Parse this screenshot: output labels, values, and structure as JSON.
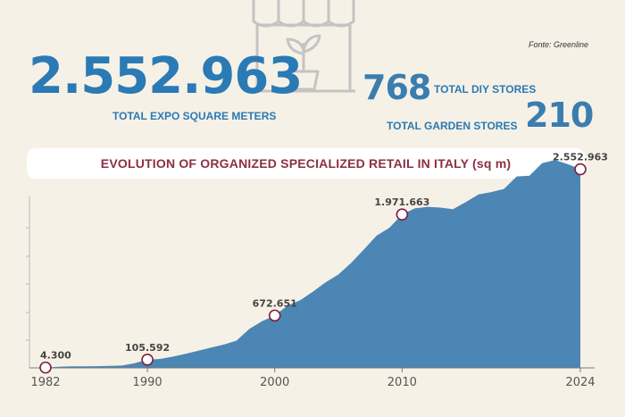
{
  "source": "Fonte: Greenline",
  "headline": {
    "total_value": "2.552.963",
    "total_label": "TOTAL EXPO SQUARE METERS",
    "diy_value": "768",
    "diy_label": "TOTAL DIY STORES",
    "garden_value": "210",
    "garden_label": "TOTAL GARDEN STORES"
  },
  "icon": "storefront-plant-icon",
  "colors": {
    "accent": "#2a7ab5",
    "area": "#4b86b4",
    "title": "#8c2f45",
    "marker": "#7a2040"
  },
  "chart_data": {
    "type": "area",
    "title": "EVOLUTION OF ORGANIZED SPECIALIZED RETAIL IN ITALY (sq m)",
    "xlabel": "",
    "ylabel": "",
    "xlim": [
      1982,
      2024
    ],
    "ylim": [
      0,
      2800000
    ],
    "x_ticks": [
      "1982",
      "1990",
      "2000",
      "2010",
      "2024"
    ],
    "grid": false,
    "x": [
      1982,
      1983,
      1984,
      1985,
      1986,
      1987,
      1988,
      1989,
      1990,
      1991,
      1992,
      1993,
      1994,
      1995,
      1996,
      1997,
      1998,
      1999,
      2000,
      2001,
      2002,
      2003,
      2004,
      2005,
      2006,
      2007,
      2008,
      2009,
      2010,
      2011,
      2012,
      2013,
      2014,
      2015,
      2016,
      2017,
      2018,
      2019,
      2020,
      2021,
      2022,
      2023,
      2024
    ],
    "values": [
      4300,
      15000,
      20000,
      20000,
      22000,
      25000,
      30000,
      60000,
      105592,
      115000,
      145000,
      180000,
      220000,
      260000,
      300000,
      350000,
      500000,
      600000,
      672651,
      800000,
      870000,
      980000,
      1100000,
      1200000,
      1350000,
      1520000,
      1700000,
      1800000,
      1971663,
      2050000,
      2070000,
      2060000,
      2040000,
      2130000,
      2230000,
      2260000,
      2300000,
      2460000,
      2470000,
      2630000,
      2670000,
      2620000,
      2552963
    ],
    "annotations": [
      {
        "x": 1982,
        "value": 4300,
        "label": "4.300"
      },
      {
        "x": 1990,
        "value": 105592,
        "label": "105.592"
      },
      {
        "x": 2000,
        "value": 672651,
        "label": "672.651"
      },
      {
        "x": 2010,
        "value": 1971663,
        "label": "1.971.663"
      },
      {
        "x": 2024,
        "value": 2552963,
        "label": "2.552.963"
      }
    ]
  }
}
